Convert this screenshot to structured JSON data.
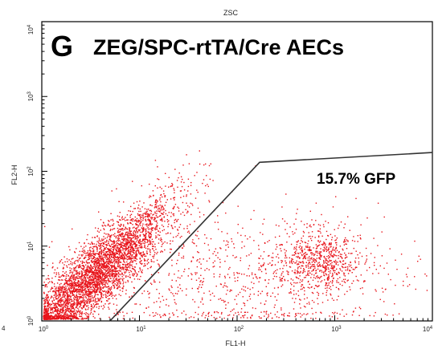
{
  "figure": {
    "plot_title": "ZSC",
    "panel_letter": "G",
    "panel_title": "ZEG/SPC-rtTA/Cre AECs",
    "left_edge_label": "4"
  },
  "chart_data": {
    "type": "scatter",
    "xlabel": "FL1-H",
    "ylabel": "FL2-H",
    "x_scale": "log",
    "y_scale": "log",
    "xlim": [
      1,
      10000
    ],
    "ylim": [
      1,
      10000
    ],
    "x_ticks": [
      {
        "base": "10",
        "exp": "0"
      },
      {
        "base": "10",
        "exp": "1"
      },
      {
        "base": "10",
        "exp": "2"
      },
      {
        "base": "10",
        "exp": "3"
      },
      {
        "base": "10",
        "exp": "4"
      }
    ],
    "y_ticks": [
      {
        "base": "10",
        "exp": "0"
      },
      {
        "base": "10",
        "exp": "1"
      },
      {
        "base": "10",
        "exp": "2"
      },
      {
        "base": "10",
        "exp": "3"
      },
      {
        "base": "10",
        "exp": "4"
      }
    ],
    "point_color": "#e8141b",
    "gate": {
      "label": "15.7% GFP",
      "polygon": [
        [
          5,
          1
        ],
        [
          170,
          132
        ],
        [
          10000,
          178
        ]
      ]
    },
    "populations": [
      {
        "name": "",
        "description_only": false,
        "center": [
          3.5,
          4.0
        ],
        "spread_log": [
          0.45,
          0.32
        ],
        "count": 4200,
        "shape": "diagonal"
      },
      {
        "name": "",
        "center": [
          700,
          6.5
        ],
        "spread_log": [
          0.22,
          0.22
        ],
        "count": 650,
        "shape": "round"
      },
      {
        "name": "",
        "center": [
          100,
          5
        ],
        "spread_log": [
          0.9,
          0.45
        ],
        "count": 900,
        "shape": "diffuse"
      }
    ]
  }
}
